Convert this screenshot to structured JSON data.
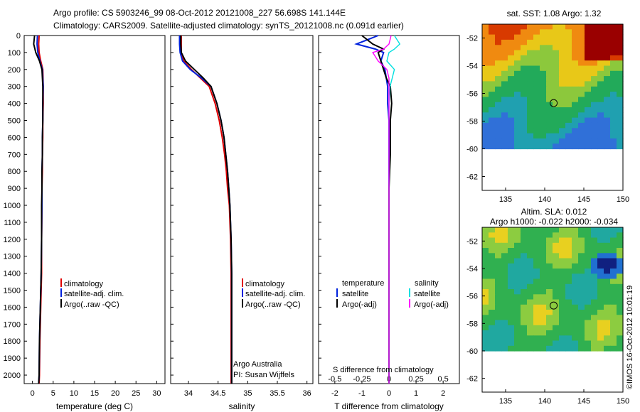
{
  "header": {
    "title_line1": "Argo profile: CS 5903246_99 08-Oct-2012 20121008_227 56.698S 141.144E",
    "title_line2": "Climatology: CARS2009. Satellite-adjusted climatology: synTS_20121008.nc (0.091d earlier)"
  },
  "depth_ticks": [
    "0",
    "100",
    "200",
    "300",
    "400",
    "500",
    "600",
    "700",
    "800",
    "900",
    "1000",
    "1100",
    "1200",
    "1300",
    "1400",
    "1500",
    "1600",
    "1700",
    "1800",
    "1900",
    "2000"
  ],
  "panel_temperature": {
    "xlabel": "temperature (deg C)",
    "xticks": [
      "0",
      "5",
      "10",
      "15",
      "20",
      "25",
      "30"
    ],
    "legend": [
      "climatology",
      "satellite-adj. clim.",
      "Argo(..raw -QC)"
    ]
  },
  "panel_salinity": {
    "xlabel": "salinity",
    "xticks": [
      "34",
      "34.5",
      "35",
      "35.5",
      "36"
    ],
    "legend": [
      "climatology",
      "satellite-adj. clim.",
      "Argo(..raw -QC)"
    ],
    "note_line1": "Argo Australia",
    "note_line2": "PI: Susan Wijffels"
  },
  "panel_difference": {
    "xlabel": "T difference from climatology",
    "xticks": [
      "-2",
      "-1",
      "0",
      "1",
      "2"
    ],
    "top_label": "S difference from climatology",
    "top_ticks": [
      "-0.5",
      "-0.25",
      "0",
      "0.25",
      "0.5"
    ],
    "legend_left_title": "temperature",
    "legend_left": [
      "satellite",
      "Argo(-adj)"
    ],
    "legend_right_title": "salinity",
    "legend_right": [
      "satellite",
      "Argo(-adj)"
    ]
  },
  "map_sst": {
    "title": "sat. SST: 1.08 Argo: 1.32",
    "yticks": [
      "-52",
      "-54",
      "-56",
      "-58",
      "-60",
      "-62"
    ],
    "xticks": [
      "135",
      "140",
      "145",
      "150"
    ]
  },
  "map_sla": {
    "title_line1": "Altim. SLA: 0.012",
    "title_line2": "Argo h1000: -0.022 h2000: -0.034",
    "yticks": [
      "-52",
      "-54",
      "-56",
      "-58",
      "-60",
      "-62"
    ],
    "xticks": [
      "135",
      "140",
      "145",
      "150"
    ]
  },
  "side_stamp": "©IMOS 16-Oct-2012 10:01:19",
  "colors": {
    "climatology": "#e00000",
    "satellite": "#0022dd",
    "argo": "#000000",
    "sal_satellite": "#00e0e0",
    "sal_argo": "#ff00ff"
  },
  "chart_data": [
    {
      "type": "line",
      "title": "",
      "xlabel": "temperature (deg C)",
      "ylabel": "",
      "xlim": [
        -2,
        32
      ],
      "ylim": [
        2050,
        0
      ],
      "series": [
        {
          "name": "climatology",
          "x": [
            1.6,
            1.5,
            1.6,
            2.0,
            2.5,
            2.6,
            2.6,
            2.5,
            2.5,
            2.4,
            2.4,
            2.3,
            2.3,
            2.2,
            2.2,
            2.1,
            2.0,
            1.8,
            1.7,
            1.6
          ],
          "y": [
            0,
            50,
            100,
            150,
            200,
            300,
            400,
            500,
            600,
            700,
            800,
            900,
            1000,
            1200,
            1400,
            1500,
            1600,
            1800,
            2000,
            2050
          ]
        },
        {
          "name": "satellite-adj. clim.",
          "x": [
            1.2,
            1.1,
            1.3,
            1.8,
            2.4,
            2.6,
            2.5,
            2.5,
            2.4,
            2.4,
            2.3,
            2.3,
            2.3,
            2.2,
            2.1,
            2.0,
            1.9,
            1.7,
            1.6,
            1.5
          ],
          "y": [
            0,
            50,
            100,
            150,
            200,
            300,
            400,
            500,
            600,
            700,
            800,
            900,
            1000,
            1200,
            1400,
            1500,
            1600,
            1800,
            2000,
            2050
          ]
        },
        {
          "name": "Argo(..raw -QC)",
          "x": [
            0.5,
            0.3,
            0.8,
            1.7,
            2.3,
            2.5,
            2.5,
            2.5,
            2.4,
            2.4,
            2.3,
            2.3,
            2.2,
            2.2,
            2.1,
            2.0,
            1.9,
            1.7,
            1.6,
            1.5
          ],
          "y": [
            0,
            50,
            100,
            150,
            200,
            300,
            400,
            500,
            600,
            700,
            800,
            900,
            1000,
            1200,
            1400,
            1500,
            1600,
            1800,
            2000,
            2050
          ]
        }
      ]
    },
    {
      "type": "line",
      "title": "",
      "xlabel": "salinity",
      "ylabel": "",
      "xlim": [
        33.7,
        36.1
      ],
      "ylim": [
        2050,
        0
      ],
      "series": [
        {
          "name": "climatology",
          "x": [
            33.88,
            33.88,
            33.88,
            33.92,
            34.05,
            34.2,
            34.35,
            34.45,
            34.52,
            34.57,
            34.61,
            34.64,
            34.66,
            34.69,
            34.71,
            34.72,
            34.72,
            34.72,
            34.72,
            34.72,
            34.72
          ],
          "y": [
            0,
            50,
            100,
            150,
            200,
            250,
            300,
            400,
            500,
            600,
            700,
            800,
            900,
            1000,
            1200,
            1400,
            1500,
            1600,
            1800,
            2000,
            2050
          ]
        },
        {
          "name": "satellite-adj. clim.",
          "x": [
            33.85,
            33.85,
            33.86,
            33.9,
            34.03,
            34.22,
            34.38,
            34.48,
            34.55,
            34.6,
            34.63,
            34.66,
            34.68,
            34.7,
            34.72,
            34.73,
            34.73,
            34.73,
            34.73,
            34.73,
            34.73
          ],
          "y": [
            0,
            50,
            100,
            150,
            200,
            250,
            300,
            400,
            500,
            600,
            700,
            800,
            900,
            1000,
            1200,
            1400,
            1500,
            1600,
            1800,
            2000,
            2050
          ]
        },
        {
          "name": "Argo(..raw -QC)",
          "x": [
            33.87,
            33.87,
            33.88,
            33.95,
            34.1,
            34.25,
            34.38,
            34.48,
            34.55,
            34.6,
            34.63,
            34.66,
            34.68,
            34.7,
            34.72,
            34.73,
            34.73,
            34.73,
            34.73,
            34.73,
            34.73
          ],
          "y": [
            0,
            50,
            100,
            150,
            200,
            250,
            300,
            400,
            500,
            600,
            700,
            800,
            900,
            1000,
            1200,
            1400,
            1500,
            1600,
            1800,
            2000,
            2050
          ]
        }
      ]
    },
    {
      "type": "line",
      "title": "",
      "xlabel": "T difference from climatology",
      "ylabel": "",
      "xlim": [
        -2.6,
        2.6
      ],
      "ylim": [
        2050,
        0
      ],
      "x2label": "S difference from climatology",
      "x2lim": [
        -0.65,
        0.65
      ],
      "series": [
        {
          "name": "temperature satellite",
          "axis": "T",
          "x": [
            -0.4,
            -1.2,
            -0.5,
            -0.2,
            -0.3,
            -0.15,
            -0.1,
            -0.05,
            -0.05,
            0,
            0,
            0,
            0,
            0,
            0,
            0,
            0
          ],
          "y": [
            0,
            50,
            80,
            100,
            150,
            200,
            250,
            300,
            400,
            500,
            700,
            900,
            1200,
            1500,
            1800,
            2000,
            2050
          ]
        },
        {
          "name": "temperature Argo(-adj)",
          "axis": "T",
          "x": [
            -1.0,
            -0.6,
            -0.2,
            -0.4,
            -0.3,
            -0.2,
            -0.1,
            0.05,
            0.1,
            0.05,
            0.05,
            0,
            0,
            0,
            0,
            0,
            0
          ],
          "y": [
            0,
            50,
            80,
            100,
            150,
            200,
            250,
            300,
            400,
            500,
            700,
            900,
            1200,
            1500,
            1800,
            2000,
            2050
          ]
        },
        {
          "name": "salinity satellite",
          "axis": "S",
          "x": [
            0.05,
            0.1,
            0.05,
            0.0,
            -0.02,
            0.05,
            0.03,
            0.01,
            0,
            0,
            0,
            0,
            0,
            0,
            0,
            0,
            0
          ],
          "y": [
            0,
            50,
            80,
            100,
            150,
            200,
            250,
            300,
            400,
            500,
            700,
            900,
            1200,
            1500,
            1800,
            2000,
            2050
          ]
        },
        {
          "name": "salinity Argo(-adj)",
          "axis": "S",
          "x": [
            0.02,
            0.0,
            -0.05,
            -0.15,
            -0.1,
            -0.02,
            0.0,
            0,
            0,
            0,
            0,
            0,
            0,
            0,
            0,
            0,
            0
          ],
          "y": [
            0,
            50,
            80,
            100,
            150,
            200,
            250,
            300,
            400,
            500,
            700,
            900,
            1200,
            1500,
            1800,
            2000,
            2050
          ]
        }
      ]
    },
    {
      "type": "heatmap",
      "title": "sat. SST: 1.08 Argo: 1.32",
      "xlim": [
        132,
        150
      ],
      "ylim": [
        -63,
        -51
      ],
      "marker": {
        "lon": 141.144,
        "lat": -56.698
      }
    },
    {
      "type": "heatmap",
      "title": "Altim. SLA: 0.012",
      "xlim": [
        132,
        150
      ],
      "ylim": [
        -63,
        -51
      ],
      "marker": {
        "lon": 141.144,
        "lat": -56.698
      }
    }
  ]
}
